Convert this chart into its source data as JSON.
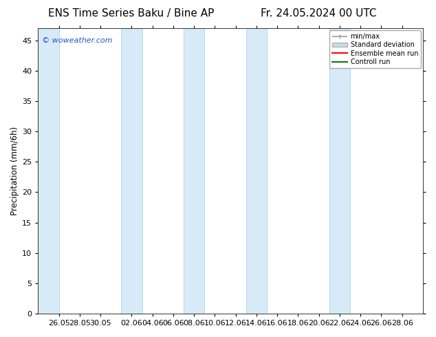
{
  "title_left": "ENS Time Series Baku / Bine AP",
  "title_right": "Fr. 24.05.2024 00 UTC",
  "ylabel": "Precipitation (mm/6h)",
  "watermark": "© woweather.com",
  "ylim": [
    0,
    47
  ],
  "yticks": [
    0,
    5,
    10,
    15,
    20,
    25,
    30,
    35,
    40,
    45
  ],
  "xtick_labels": [
    "26.05",
    "28.05",
    "30.05",
    "02.06",
    "04.06",
    "06.06",
    "08.06",
    "10.06",
    "12.06",
    "14.06",
    "16.06",
    "18.06",
    "20.06",
    "22.06",
    "24.06",
    "26.06",
    "28.06"
  ],
  "xtick_days": [
    2,
    4,
    6,
    9,
    11,
    13,
    15,
    17,
    19,
    21,
    23,
    25,
    27,
    29,
    31,
    33,
    35
  ],
  "shaded_bands": [
    [
      0,
      2
    ],
    [
      8,
      10
    ],
    [
      14,
      16
    ],
    [
      20,
      22
    ],
    [
      28,
      30
    ]
  ],
  "shaded_color": "#d6eaf8",
  "shaded_edge_color": "#aaccdd",
  "bg_color": "#ffffff",
  "plot_bg_color": "#ffffff",
  "legend_labels": [
    "min/max",
    "Standard deviation",
    "Ensemble mean run",
    "Controll run"
  ],
  "legend_colors_line": [
    "#999999",
    "#c5dceb",
    "#ff0000",
    "#008000"
  ],
  "title_fontsize": 11,
  "axis_fontsize": 8,
  "watermark_color": "#2255cc",
  "xmin": 0,
  "xmax": 37
}
